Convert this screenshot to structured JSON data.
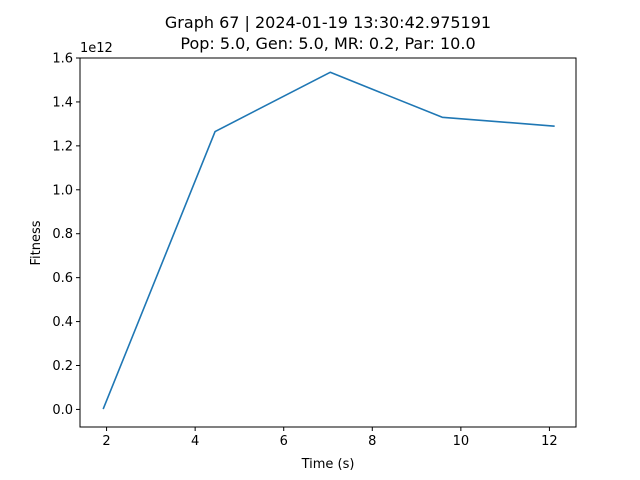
{
  "chart_data": {
    "type": "line",
    "title": "Graph 67 | 2024-01-19 13:30:42.975191",
    "subtitle": "Pop: 5.0, Gen: 5.0, MR: 0.2, Par: 10.0",
    "xlabel": "Time (s)",
    "ylabel": "Fitness",
    "y_offset_label": "1e12",
    "xlim": [
      1.4,
      12.6
    ],
    "ylim": [
      -0.08,
      1.6
    ],
    "x_ticks": [
      2,
      4,
      6,
      8,
      10,
      12
    ],
    "x_tick_labels": [
      "2",
      "4",
      "6",
      "8",
      "10",
      "12"
    ],
    "y_ticks": [
      0.0,
      0.2,
      0.4,
      0.6,
      0.8,
      1.0,
      1.2,
      1.4,
      1.6
    ],
    "y_tick_labels": [
      "0.0",
      "0.2",
      "0.4",
      "0.6",
      "0.8",
      "1.0",
      "1.2",
      "1.4",
      "1.6"
    ],
    "grid": false,
    "series": [
      {
        "x": [
          1.93,
          4.45,
          7.05,
          9.58,
          12.1
        ],
        "y": [
          0.005,
          1.265,
          1.535,
          1.33,
          1.29
        ],
        "color": "#1f77b4"
      }
    ]
  }
}
